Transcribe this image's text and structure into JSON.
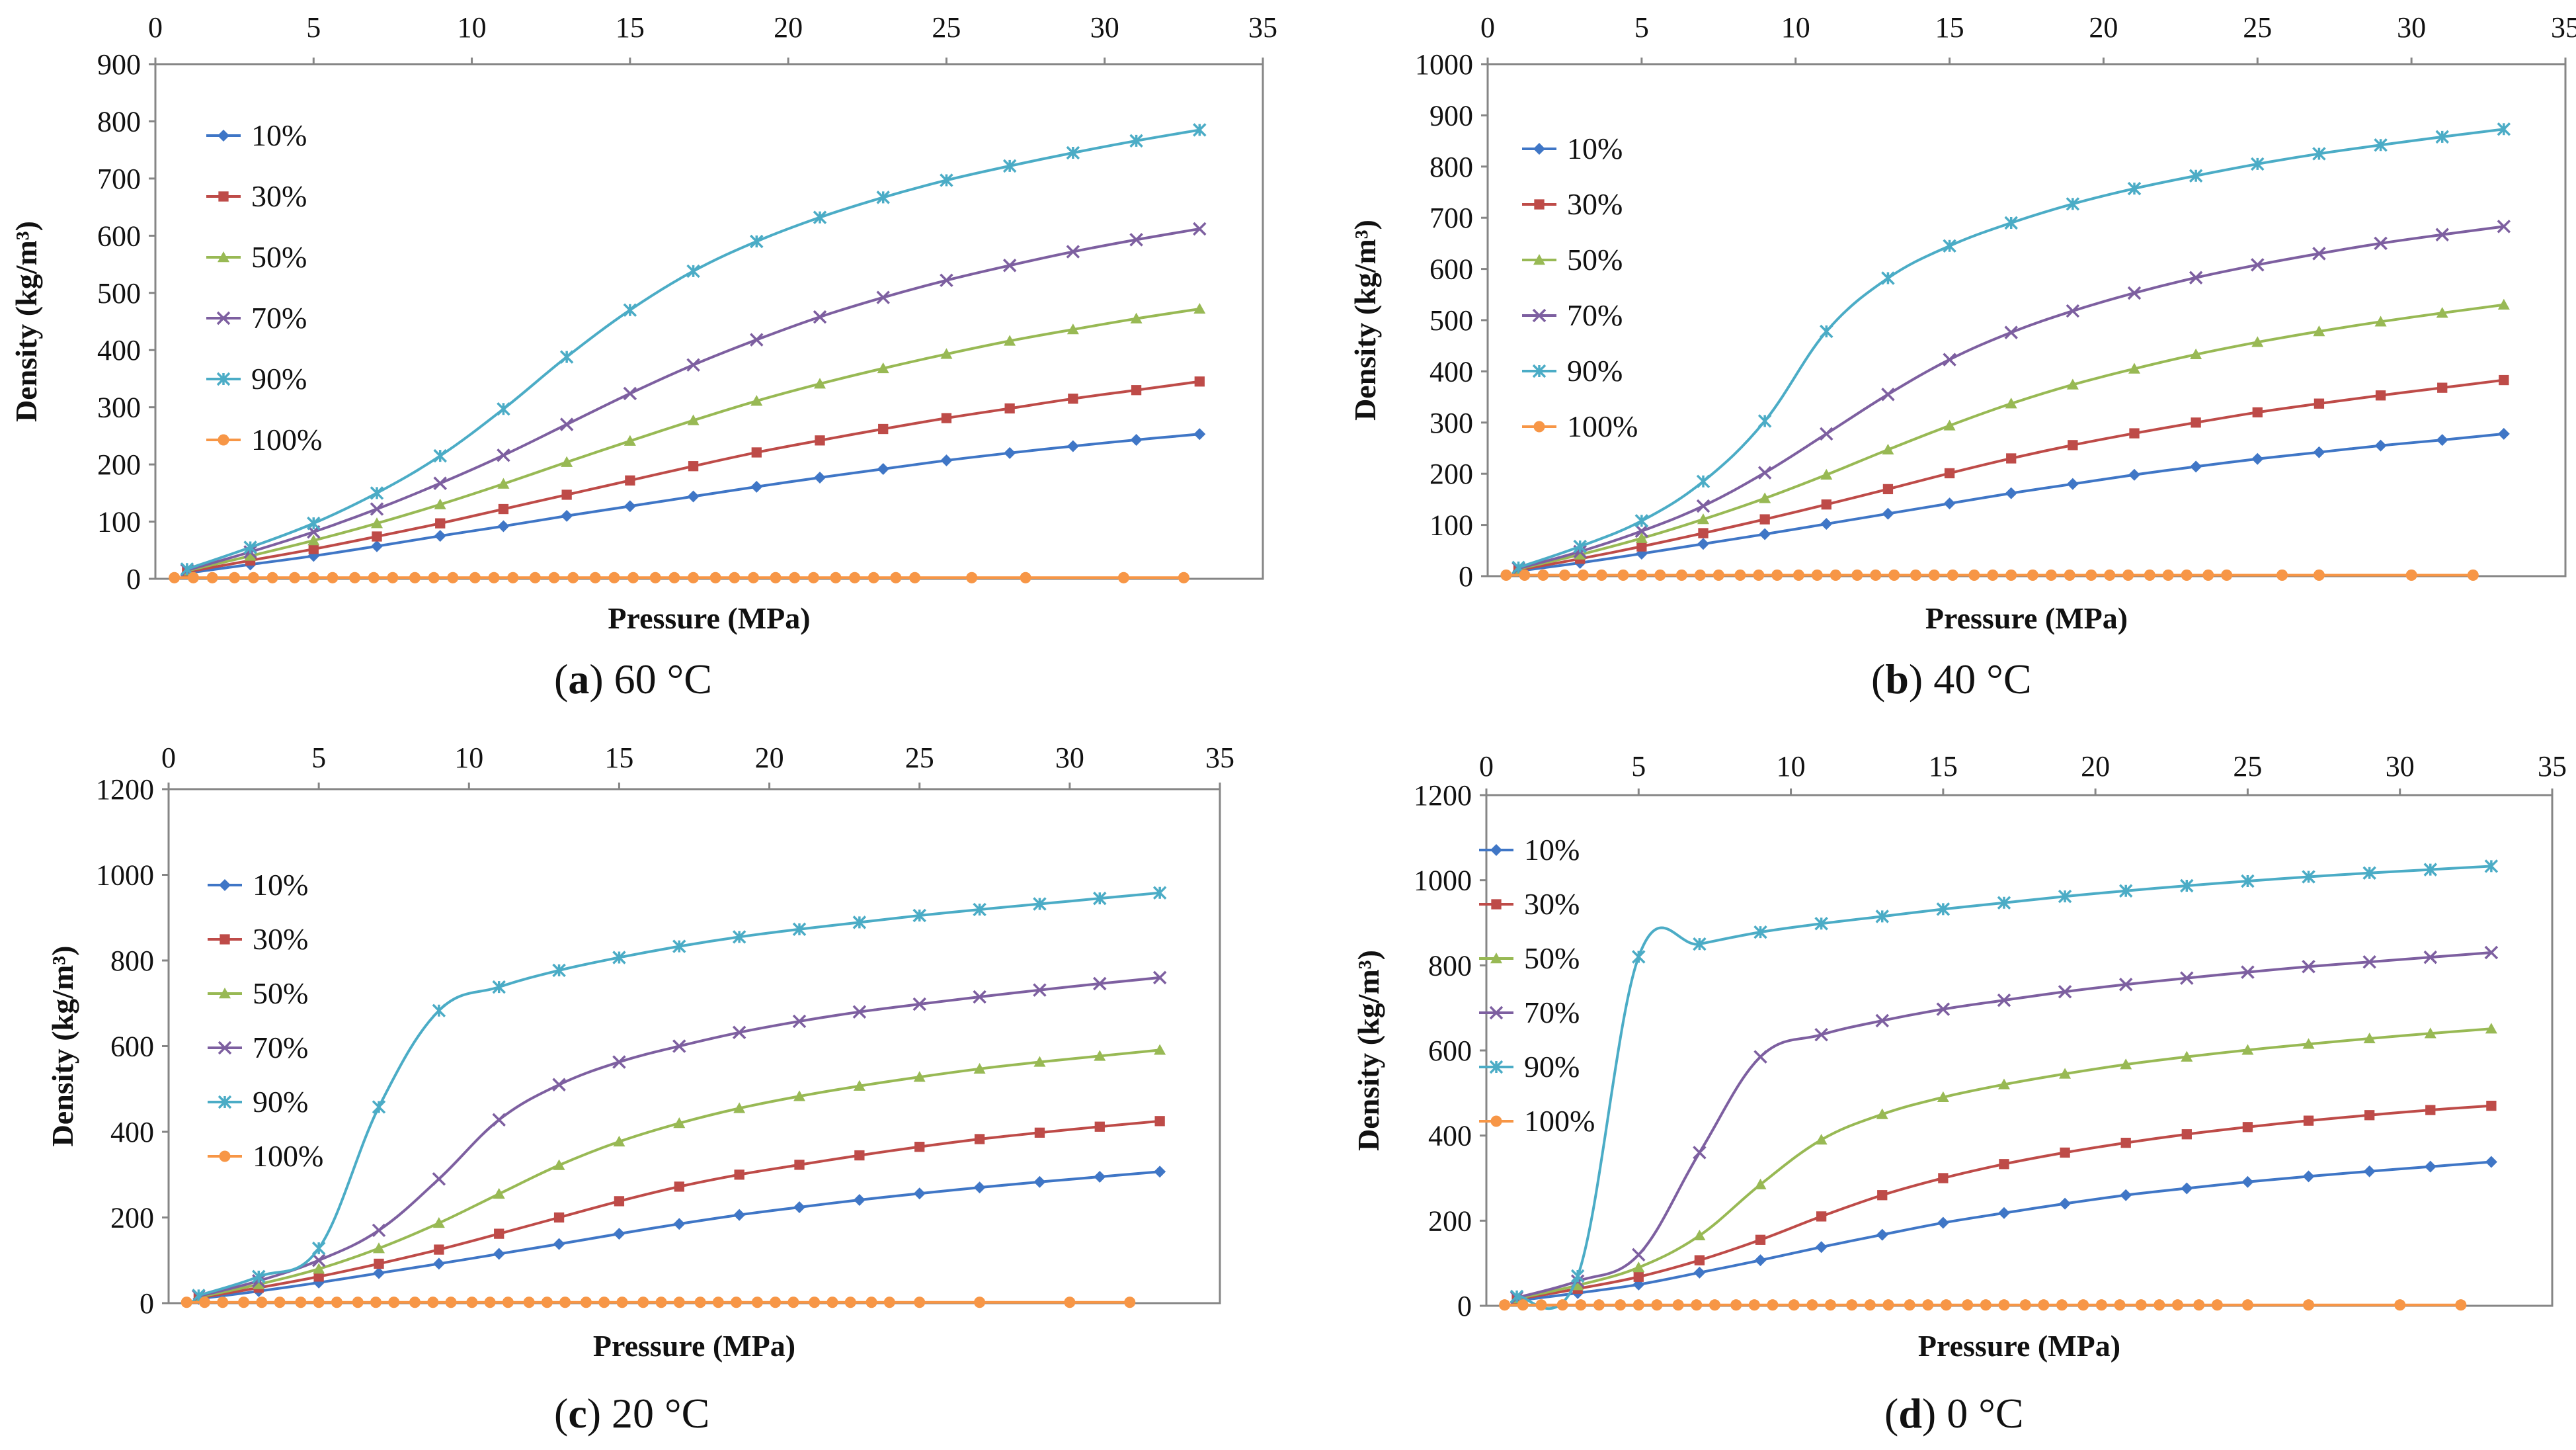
{
  "figure": {
    "colors": {
      "s10": "#3f76c6",
      "s30": "#be4b48",
      "s50": "#98b954",
      "s70": "#7d5fa0",
      "s90": "#4bacc6",
      "s100": "#f79646",
      "plot_border": "#868686"
    }
  },
  "chart_data": [
    {
      "type": "line",
      "panel_id": "a",
      "caption_letter": "a",
      "caption_text": "60 °C",
      "xlabel": "Pressure (MPa)",
      "ylabel": "Density (kg/m³)",
      "xlim": [
        0,
        35
      ],
      "ylim": [
        0,
        900
      ],
      "x_ticks": [
        0,
        5,
        10,
        15,
        20,
        25,
        30,
        35
      ],
      "y_ticks": [
        0,
        100,
        200,
        300,
        400,
        500,
        600,
        700,
        800,
        900
      ],
      "x_axis_position": "top",
      "legend_position": "top-left",
      "x": [
        1,
        3,
        5,
        7,
        9,
        11,
        13,
        15,
        17,
        19,
        21,
        23,
        25,
        27,
        29,
        31,
        33
      ],
      "series": [
        {
          "name": "10%",
          "marker": "diamond",
          "values": [
            10,
            25,
            40,
            57,
            75,
            92,
            110,
            127,
            144,
            161,
            177,
            192,
            207,
            220,
            232,
            243,
            253
          ]
        },
        {
          "name": "30%",
          "marker": "square",
          "values": [
            12,
            32,
            52,
            74,
            97,
            122,
            147,
            172,
            197,
            221,
            242,
            262,
            281,
            298,
            315,
            330,
            345
          ]
        },
        {
          "name": "50%",
          "marker": "triangle",
          "values": [
            14,
            40,
            67,
            97,
            130,
            166,
            204,
            241,
            277,
            311,
            341,
            368,
            393,
            416,
            436,
            455,
            472
          ]
        },
        {
          "name": "70%",
          "marker": "x",
          "values": [
            15,
            47,
            82,
            122,
            167,
            216,
            270,
            324,
            374,
            418,
            458,
            492,
            522,
            548,
            572,
            593,
            612
          ]
        },
        {
          "name": "90%",
          "marker": "star",
          "values": [
            17,
            55,
            97,
            150,
            215,
            297,
            388,
            470,
            538,
            590,
            632,
            667,
            697,
            722,
            745,
            766,
            785
          ]
        },
        {
          "name": "100%",
          "marker": "circle",
          "x": [
            0.6,
            1.2,
            1.8,
            2.5,
            3.1,
            3.7,
            4.4,
            5.0,
            5.6,
            6.3,
            6.9,
            7.5,
            8.2,
            8.8,
            9.4,
            10.1,
            10.7,
            11.3,
            12.0,
            12.6,
            13.2,
            13.9,
            14.5,
            15.1,
            15.8,
            16.4,
            17.0,
            17.7,
            18.3,
            18.9,
            19.6,
            20.2,
            20.8,
            21.5,
            22.1,
            22.7,
            23.4,
            24.0,
            25.8,
            27.5,
            30.6,
            32.5
          ],
          "values": [
            2,
            2,
            2,
            2,
            2,
            2,
            2,
            2,
            2,
            2,
            2,
            2,
            2,
            2,
            2,
            2,
            2,
            2,
            2,
            2,
            2,
            2,
            2,
            2,
            2,
            2,
            2,
            2,
            2,
            2,
            2,
            2,
            2,
            2,
            2,
            2,
            2,
            2,
            2,
            2,
            2,
            2
          ]
        }
      ]
    },
    {
      "type": "line",
      "panel_id": "b",
      "caption_letter": "b",
      "caption_text": "40 °C",
      "xlabel": "Pressure (MPa)",
      "ylabel": "Density (kg/m³)",
      "xlim": [
        0,
        35
      ],
      "ylim": [
        0,
        1000
      ],
      "x_ticks": [
        0,
        5,
        10,
        15,
        20,
        25,
        30,
        35
      ],
      "y_ticks": [
        0,
        100,
        200,
        300,
        400,
        500,
        600,
        700,
        800,
        900,
        1000
      ],
      "x_axis_position": "top",
      "legend_position": "top-left",
      "x": [
        1,
        3,
        5,
        7,
        9,
        11,
        13,
        15,
        17,
        19,
        21,
        23,
        25,
        27,
        29,
        31,
        33
      ],
      "series": [
        {
          "name": "10%",
          "marker": "diamond",
          "values": [
            10,
            26,
            44,
            63,
            82,
            102,
            122,
            142,
            162,
            180,
            198,
            214,
            229,
            242,
            255,
            266,
            278
          ]
        },
        {
          "name": "30%",
          "marker": "square",
          "values": [
            12,
            34,
            58,
            84,
            111,
            140,
            170,
            201,
            230,
            256,
            279,
            300,
            320,
            337,
            353,
            368,
            383
          ]
        },
        {
          "name": "50%",
          "marker": "triangle",
          "values": [
            14,
            42,
            74,
            111,
            152,
            198,
            247,
            294,
            337,
            374,
            405,
            433,
            457,
            478,
            497,
            514,
            530
          ]
        },
        {
          "name": "70%",
          "marker": "x",
          "values": [
            15,
            48,
            88,
            137,
            202,
            278,
            355,
            423,
            476,
            518,
            553,
            583,
            608,
            630,
            650,
            667,
            683
          ]
        },
        {
          "name": "90%",
          "marker": "star",
          "values": [
            17,
            58,
            108,
            185,
            303,
            478,
            582,
            645,
            690,
            727,
            757,
            782,
            805,
            825,
            842,
            858,
            873
          ]
        },
        {
          "name": "100%",
          "marker": "circle",
          "x": [
            0.6,
            1.2,
            1.8,
            2.5,
            3.1,
            3.7,
            4.4,
            5.0,
            5.6,
            6.3,
            6.9,
            7.5,
            8.2,
            8.8,
            9.4,
            10.1,
            10.7,
            11.3,
            12.0,
            12.6,
            13.2,
            13.9,
            14.5,
            15.1,
            15.8,
            16.4,
            17.0,
            17.7,
            18.3,
            18.9,
            19.6,
            20.2,
            20.8,
            21.5,
            22.1,
            22.7,
            23.4,
            24.0,
            25.8,
            27.0,
            30.0,
            32.0
          ],
          "values": [
            2,
            2,
            2,
            2,
            2,
            2,
            2,
            2,
            2,
            2,
            2,
            2,
            2,
            2,
            2,
            2,
            2,
            2,
            2,
            2,
            2,
            2,
            2,
            2,
            2,
            2,
            2,
            2,
            2,
            2,
            2,
            2,
            2,
            2,
            2,
            2,
            2,
            2,
            2,
            2,
            2,
            2
          ]
        }
      ]
    },
    {
      "type": "line",
      "panel_id": "c",
      "caption_letter": "c",
      "caption_text": "20 °C",
      "xlabel": "Pressure (MPa)",
      "ylabel": "Density (kg/m³)",
      "xlim": [
        0,
        35
      ],
      "ylim": [
        0,
        1200
      ],
      "x_ticks": [
        0,
        5,
        10,
        15,
        20,
        25,
        30,
        35
      ],
      "y_ticks": [
        0,
        200,
        400,
        600,
        800,
        1000,
        1200
      ],
      "x_axis_position": "top",
      "legend_position": "top-left",
      "x": [
        1,
        3,
        5,
        7,
        9,
        11,
        13,
        15,
        17,
        19,
        21,
        23,
        25,
        27,
        29,
        31,
        33
      ],
      "series": [
        {
          "name": "10%",
          "marker": "diamond",
          "values": [
            10,
            28,
            48,
            70,
            92,
            115,
            138,
            162,
            185,
            206,
            224,
            241,
            256,
            270,
            283,
            295,
            307
          ]
        },
        {
          "name": "30%",
          "marker": "square",
          "values": [
            12,
            36,
            62,
            92,
            125,
            162,
            200,
            238,
            272,
            300,
            323,
            345,
            365,
            383,
            398,
            412,
            425
          ]
        },
        {
          "name": "50%",
          "marker": "triangle",
          "values": [
            14,
            44,
            80,
            128,
            187,
            255,
            322,
            377,
            420,
            455,
            483,
            507,
            528,
            547,
            563,
            577,
            591
          ]
        },
        {
          "name": "70%",
          "marker": "x",
          "values": [
            16,
            52,
            100,
            170,
            290,
            428,
            510,
            563,
            600,
            632,
            658,
            680,
            698,
            715,
            731,
            746,
            760
          ]
        },
        {
          "name": "90%",
          "marker": "star",
          "values": [
            18,
            62,
            128,
            458,
            683,
            738,
            777,
            807,
            833,
            855,
            873,
            889,
            905,
            919,
            932,
            945,
            958
          ]
        },
        {
          "name": "100%",
          "marker": "circle",
          "x": [
            0.6,
            1.2,
            1.8,
            2.5,
            3.1,
            3.7,
            4.4,
            5.0,
            5.6,
            6.3,
            6.9,
            7.5,
            8.2,
            8.8,
            9.4,
            10.1,
            10.7,
            11.3,
            12.0,
            12.6,
            13.2,
            13.9,
            14.5,
            15.1,
            15.8,
            16.4,
            17.0,
            17.7,
            18.3,
            18.9,
            19.6,
            20.2,
            20.8,
            21.5,
            22.1,
            22.7,
            23.4,
            24.0,
            25.0,
            27.0,
            30.0,
            32.0
          ],
          "values": [
            2,
            2,
            2,
            2,
            2,
            2,
            2,
            2,
            2,
            2,
            2,
            2,
            2,
            2,
            2,
            2,
            2,
            2,
            2,
            2,
            2,
            2,
            2,
            2,
            2,
            2,
            2,
            2,
            2,
            2,
            2,
            2,
            2,
            2,
            2,
            2,
            2,
            2,
            2,
            2,
            2,
            2
          ]
        }
      ]
    },
    {
      "type": "line",
      "panel_id": "d",
      "caption_letter": "d",
      "caption_text": "0 °C",
      "xlabel": "Pressure (MPa)",
      "ylabel": "Density (kg/m³)",
      "xlim": [
        0,
        35
      ],
      "ylim": [
        0,
        1200
      ],
      "x_ticks": [
        0,
        5,
        10,
        15,
        20,
        25,
        30,
        35
      ],
      "y_ticks": [
        0,
        200,
        400,
        600,
        800,
        1000,
        1200
      ],
      "x_axis_position": "top",
      "legend_position": "top-left",
      "x": [
        1,
        3,
        5,
        7,
        9,
        11,
        13,
        15,
        17,
        19,
        21,
        23,
        25,
        27,
        29,
        31,
        33
      ],
      "series": [
        {
          "name": "10%",
          "marker": "diamond",
          "values": [
            12,
            30,
            50,
            78,
            107,
            138,
            167,
            195,
            218,
            240,
            260,
            276,
            291,
            304,
            316,
            327,
            338
          ]
        },
        {
          "name": "30%",
          "marker": "square",
          "values": [
            15,
            40,
            68,
            107,
            155,
            210,
            260,
            300,
            333,
            360,
            383,
            403,
            420,
            435,
            448,
            460,
            470
          ]
        },
        {
          "name": "50%",
          "marker": "triangle",
          "values": [
            17,
            48,
            90,
            165,
            285,
            390,
            450,
            490,
            520,
            545,
            567,
            585,
            601,
            615,
            628,
            640,
            651
          ]
        },
        {
          "name": "70%",
          "marker": "x",
          "values": [
            19,
            58,
            120,
            360,
            585,
            637,
            670,
            697,
            718,
            738,
            755,
            770,
            784,
            797,
            808,
            819,
            830
          ]
        },
        {
          "name": "90%",
          "marker": "star",
          "values": [
            22,
            70,
            820,
            850,
            878,
            898,
            915,
            932,
            947,
            962,
            975,
            987,
            998,
            1008,
            1017,
            1025,
            1033
          ]
        },
        {
          "name": "100%",
          "marker": "circle",
          "x": [
            0.6,
            1.2,
            1.8,
            2.5,
            3.1,
            3.7,
            4.4,
            5.0,
            5.6,
            6.3,
            6.9,
            7.5,
            8.2,
            8.8,
            9.4,
            10.1,
            10.7,
            11.3,
            12.0,
            12.6,
            13.2,
            13.9,
            14.5,
            15.1,
            15.8,
            16.4,
            17.0,
            17.7,
            18.3,
            18.9,
            19.6,
            20.2,
            20.8,
            21.5,
            22.1,
            22.7,
            23.4,
            24.0,
            25.0,
            27.0,
            30.0,
            32.0
          ],
          "values": [
            2,
            2,
            2,
            2,
            2,
            2,
            2,
            2,
            2,
            2,
            2,
            2,
            2,
            2,
            2,
            2,
            2,
            2,
            2,
            2,
            2,
            2,
            2,
            2,
            2,
            2,
            2,
            2,
            2,
            2,
            2,
            2,
            2,
            2,
            2,
            2,
            2,
            2,
            2,
            2,
            2,
            2
          ]
        }
      ]
    }
  ]
}
